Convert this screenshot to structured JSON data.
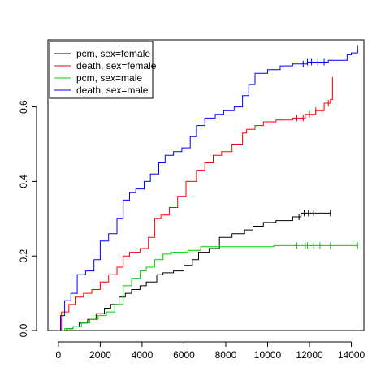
{
  "chart_data": {
    "type": "line",
    "title": "",
    "xlabel": "",
    "ylabel": "",
    "xlim": [
      -500,
      14600
    ],
    "ylim": [
      0,
      0.78
    ],
    "grid": false,
    "legend_position": "top-left",
    "x_ticks": [
      0,
      2000,
      4000,
      6000,
      8000,
      10000,
      12000,
      14000
    ],
    "y_ticks": [
      0.0,
      0.2,
      0.4,
      0.6
    ],
    "x_tick_labels": [
      "0",
      "2000",
      "4000",
      "6000",
      "8000",
      "10000",
      "12000",
      "14000"
    ],
    "y_tick_labels": [
      "0.0",
      "0.2",
      "0.4",
      "0.6"
    ],
    "series": [
      {
        "name": "pcm, sex=female",
        "color": "#000000",
        "points": [
          [
            0,
            0
          ],
          [
            400,
            0.005
          ],
          [
            700,
            0.01
          ],
          [
            1000,
            0.02
          ],
          [
            1400,
            0.03
          ],
          [
            1800,
            0.045
          ],
          [
            2200,
            0.06
          ],
          [
            2500,
            0.07
          ],
          [
            2900,
            0.09
          ],
          [
            3200,
            0.1
          ],
          [
            3500,
            0.11
          ],
          [
            3900,
            0.12
          ],
          [
            4200,
            0.13
          ],
          [
            4700,
            0.15
          ],
          [
            5000,
            0.155
          ],
          [
            5500,
            0.16
          ],
          [
            6000,
            0.175
          ],
          [
            6400,
            0.19
          ],
          [
            6700,
            0.21
          ],
          [
            7200,
            0.22
          ],
          [
            7700,
            0.25
          ],
          [
            8300,
            0.26
          ],
          [
            8900,
            0.27
          ],
          [
            9300,
            0.28
          ],
          [
            9800,
            0.29
          ],
          [
            10400,
            0.295
          ],
          [
            11200,
            0.305
          ],
          [
            11600,
            0.315
          ],
          [
            13000,
            0.315
          ]
        ],
        "censor_x": [
          11500,
          11750,
          11950,
          12200,
          13000
        ]
      },
      {
        "name": "death, sex=female",
        "color": "#ff0000",
        "points": [
          [
            0,
            0
          ],
          [
            150,
            0.05
          ],
          [
            500,
            0.07
          ],
          [
            800,
            0.09
          ],
          [
            1200,
            0.1
          ],
          [
            1600,
            0.11
          ],
          [
            2000,
            0.13
          ],
          [
            2400,
            0.15
          ],
          [
            2800,
            0.17
          ],
          [
            3100,
            0.2
          ],
          [
            3400,
            0.21
          ],
          [
            3900,
            0.22
          ],
          [
            4300,
            0.25
          ],
          [
            4600,
            0.3
          ],
          [
            4900,
            0.31
          ],
          [
            5300,
            0.33
          ],
          [
            5700,
            0.36
          ],
          [
            6100,
            0.4
          ],
          [
            6600,
            0.43
          ],
          [
            7000,
            0.45
          ],
          [
            7400,
            0.47
          ],
          [
            7800,
            0.48
          ],
          [
            8300,
            0.5
          ],
          [
            8800,
            0.53
          ],
          [
            9000,
            0.54
          ],
          [
            9400,
            0.55
          ],
          [
            9800,
            0.56
          ],
          [
            10400,
            0.565
          ],
          [
            11200,
            0.57
          ],
          [
            11800,
            0.58
          ],
          [
            12300,
            0.59
          ],
          [
            12700,
            0.61
          ],
          [
            13000,
            0.62
          ],
          [
            13100,
            0.68
          ]
        ],
        "censor_x": [
          11400,
          11700,
          12000,
          12300,
          12600,
          12900
        ]
      },
      {
        "name": "pcm, sex=male",
        "color": "#00cc00",
        "points": [
          [
            0,
            0
          ],
          [
            300,
            0.005
          ],
          [
            700,
            0.01
          ],
          [
            1100,
            0.02
          ],
          [
            1500,
            0.03
          ],
          [
            1900,
            0.04
          ],
          [
            2300,
            0.05
          ],
          [
            2700,
            0.07
          ],
          [
            3100,
            0.12
          ],
          [
            3500,
            0.14
          ],
          [
            3900,
            0.16
          ],
          [
            4200,
            0.17
          ],
          [
            4600,
            0.19
          ],
          [
            5000,
            0.205
          ],
          [
            5400,
            0.21
          ],
          [
            6200,
            0.215
          ],
          [
            6800,
            0.225
          ],
          [
            8000,
            0.225
          ],
          [
            10100,
            0.225
          ],
          [
            10300,
            0.228
          ],
          [
            14300,
            0.228
          ]
        ],
        "censor_x": [
          11400,
          11800,
          11900,
          12200,
          12500,
          13000,
          14300
        ]
      },
      {
        "name": "death, sex=male",
        "color": "#0000ff",
        "points": [
          [
            0,
            0
          ],
          [
            100,
            0.04
          ],
          [
            300,
            0.08
          ],
          [
            600,
            0.1
          ],
          [
            900,
            0.15
          ],
          [
            1300,
            0.16
          ],
          [
            1700,
            0.19
          ],
          [
            2000,
            0.24
          ],
          [
            2400,
            0.26
          ],
          [
            2800,
            0.3
          ],
          [
            3100,
            0.35
          ],
          [
            3400,
            0.37
          ],
          [
            3700,
            0.38
          ],
          [
            4100,
            0.4
          ],
          [
            4400,
            0.42
          ],
          [
            4800,
            0.45
          ],
          [
            5100,
            0.47
          ],
          [
            5500,
            0.48
          ],
          [
            5900,
            0.49
          ],
          [
            6300,
            0.52
          ],
          [
            6600,
            0.55
          ],
          [
            7000,
            0.57
          ],
          [
            7500,
            0.58
          ],
          [
            7900,
            0.59
          ],
          [
            8400,
            0.6
          ],
          [
            8800,
            0.63
          ],
          [
            9100,
            0.66
          ],
          [
            9400,
            0.69
          ],
          [
            10000,
            0.7
          ],
          [
            10600,
            0.71
          ],
          [
            11200,
            0.715
          ],
          [
            11900,
            0.72
          ],
          [
            12900,
            0.725
          ],
          [
            13800,
            0.74
          ],
          [
            14000,
            0.745
          ],
          [
            14300,
            0.755
          ]
        ],
        "censor_x": [
          11700,
          11900,
          12100,
          12400,
          12700,
          14300
        ]
      }
    ]
  }
}
